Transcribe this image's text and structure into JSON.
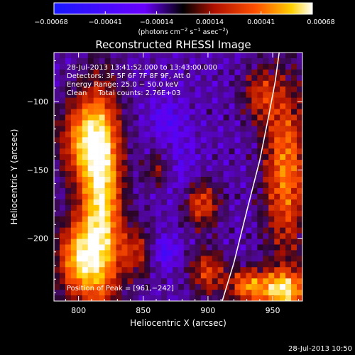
{
  "chart_data": {
    "type": "heatmap",
    "title": "Reconstructed RHESSI Image",
    "xlabel": "Heliocentric X (arcsec)",
    "ylabel": "Heliocentric Y (arcsec)",
    "xlim": [
      781,
      973
    ],
    "ylim": [
      -246,
      -64
    ],
    "x_ticks": [
      {
        "v": 800,
        "label": "800"
      },
      {
        "v": 850,
        "label": "850"
      },
      {
        "v": 900,
        "label": "900"
      },
      {
        "v": 950,
        "label": "950"
      }
    ],
    "y_ticks": [
      {
        "v": -100,
        "label": "−100"
      },
      {
        "v": -150,
        "label": "−150"
      },
      {
        "v": -200,
        "label": "−200"
      }
    ],
    "colorbar": {
      "range": [
        -0.00068,
        0.00068
      ],
      "ticks": [
        {
          "v": -0.00068,
          "label": "−0.00068"
        },
        {
          "v": -0.00041,
          "label": "−0.00041"
        },
        {
          "v": -0.00014,
          "label": "−0.00014"
        },
        {
          "v": 0.00014,
          "label": "0.00014"
        },
        {
          "v": 0.00041,
          "label": "0.00041"
        },
        {
          "v": 0.00068,
          "label": "0.00068"
        }
      ],
      "units_prefix": "(photons cm",
      "units_exp1": "−2",
      "units_mid": " s",
      "units_exp2": "−1",
      "units_mid2": " asec",
      "units_exp3": "−2",
      "units_suffix": ")"
    },
    "annotations": [
      "28-Jul-2013 13:41:52.000 to 13:43:00.000",
      "Detectors: 3F 5F 6F 7F 8F 9F, Att 0",
      "Energy Range: 25.0 − 50.0 keV",
      "Clean     Total counts: 2.76E+03"
    ],
    "peak_label": "Position of Peak = [961,−242]",
    "peak": {
      "x": 961,
      "y": -242
    },
    "limb_line": [
      [
        911,
        -246
      ],
      [
        920,
        -218
      ],
      [
        930,
        -180
      ],
      [
        940,
        -143
      ],
      [
        947,
        -110
      ],
      [
        952,
        -85
      ],
      [
        955,
        -64
      ]
    ],
    "bright_regions": [
      {
        "x": 818,
        "y": -175,
        "sx": 11,
        "sy": 55,
        "amp": 1.0
      },
      {
        "x": 805,
        "y": -128,
        "sx": 14,
        "sy": 22,
        "amp": 0.75
      },
      {
        "x": 800,
        "y": -215,
        "sx": 12,
        "sy": 20,
        "amp": 0.85
      },
      {
        "x": 845,
        "y": -210,
        "sx": 10,
        "sy": 14,
        "amp": 0.45
      },
      {
        "x": 862,
        "y": -150,
        "sx": 8,
        "sy": 10,
        "amp": 0.35
      },
      {
        "x": 895,
        "y": -175,
        "sx": 10,
        "sy": 12,
        "amp": 0.6
      },
      {
        "x": 900,
        "y": -225,
        "sx": 10,
        "sy": 12,
        "amp": 0.55
      },
      {
        "x": 960,
        "y": -150,
        "sx": 12,
        "sy": 45,
        "amp": 0.75
      },
      {
        "x": 958,
        "y": -238,
        "sx": 13,
        "sy": 10,
        "amp": 1.0
      },
      {
        "x": 930,
        "y": -235,
        "sx": 10,
        "sy": 9,
        "amp": 0.7
      },
      {
        "x": 940,
        "y": -95,
        "sx": 10,
        "sy": 14,
        "amp": 0.45
      }
    ],
    "dim_regions": [
      {
        "x": 866,
        "y": -210,
        "sx": 8,
        "sy": 8,
        "amp": 0.55
      },
      {
        "x": 868,
        "y": -112,
        "sx": 10,
        "sy": 10,
        "amp": 0.35
      },
      {
        "x": 878,
        "y": -150,
        "sx": 10,
        "sy": 20,
        "amp": 0.3
      }
    ]
  },
  "footer": {
    "timestamp": "28-Jul-2013 10:50"
  }
}
